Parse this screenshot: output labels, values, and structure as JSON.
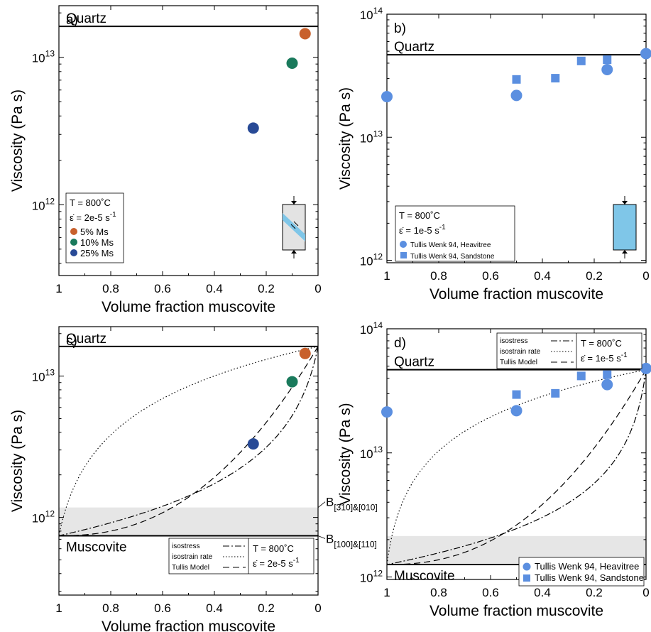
{
  "chart_data": [
    {
      "type": "scatter",
      "panel": "a)",
      "xlabel": "Volume fraction muscovite",
      "ylabel": "Viscosity (Pa s)",
      "x_reversed": true,
      "xlim": [
        1,
        0
      ],
      "ylog": true,
      "ylim_exp": [
        11.52,
        13.35
      ],
      "xticks": [
        "1",
        "0.8",
        "0.6",
        "0.4",
        "0.2",
        "0"
      ],
      "yticks": [
        {
          "base": "10",
          "exp": "12",
          "value": 12
        },
        {
          "base": "10",
          "exp": "13",
          "value": 13
        }
      ],
      "hlines": [
        {
          "label": "Quartz",
          "log_y": 13.21
        }
      ],
      "legend": {
        "conditions": [
          "T = 800˚C",
          "ε̇ = 2e-5 s"
        ],
        "condition_exp": "-1",
        "entries": [
          {
            "label": "5% Ms",
            "color": "#c8602c",
            "marker": "circle"
          },
          {
            "label": "10% Ms",
            "color": "#1a7a5c",
            "marker": "circle"
          },
          {
            "label": "25% Ms",
            "color": "#284a96",
            "marker": "circle"
          }
        ]
      },
      "points": [
        {
          "x": 0.05,
          "log_y": 13.16,
          "color": "#c8602c"
        },
        {
          "x": 0.1,
          "log_y": 12.96,
          "color": "#1a7a5c"
        },
        {
          "x": 0.25,
          "log_y": 12.52,
          "color": "#284a96"
        }
      ],
      "inset": "shear-sample"
    },
    {
      "type": "scatter",
      "panel": "b)",
      "xlabel": "Volume fraction muscovite",
      "ylabel": "Viscosity (Pa s)",
      "x_reversed": true,
      "xlim": [
        1,
        0
      ],
      "ylog": true,
      "ylim_exp": [
        11.98,
        14.0
      ],
      "xticks": [
        "1",
        "0.8",
        "0.6",
        "0.4",
        "0.2",
        "0"
      ],
      "yticks": [
        {
          "base": "10",
          "exp": "12",
          "value": 12
        },
        {
          "base": "10",
          "exp": "13",
          "value": 13
        },
        {
          "base": "10",
          "exp": "14",
          "value": 14
        }
      ],
      "hlines": [
        {
          "label": "Quartz",
          "log_y": 13.67
        }
      ],
      "legend": {
        "conditions": [
          "T = 800˚C",
          "ε̇ = 1e-5 s"
        ],
        "condition_exp": "-1",
        "entries": [
          {
            "label": "Tullis Wenk 94, Heavitree",
            "color": "#5b8fe0",
            "marker": "circle"
          },
          {
            "label": "Tullis Wenk 94, Sandstone",
            "color": "#5b8fe0",
            "marker": "square"
          }
        ]
      },
      "series": [
        {
          "name": "Tullis Wenk 94, Heavitree",
          "marker": "circle",
          "points": [
            {
              "x": 1.0,
              "log_y": 13.33
            },
            {
              "x": 0.5,
              "log_y": 13.34
            },
            {
              "x": 0.15,
              "log_y": 13.55
            },
            {
              "x": 0.0,
              "log_y": 13.68
            }
          ]
        },
        {
          "name": "Tullis Wenk 94, Sandstone",
          "marker": "square",
          "points": [
            {
              "x": 0.5,
              "log_y": 13.47
            },
            {
              "x": 0.35,
              "log_y": 13.48
            },
            {
              "x": 0.25,
              "log_y": 13.62
            },
            {
              "x": 0.15,
              "log_y": 13.63
            }
          ]
        }
      ],
      "inset": "compression-sample"
    },
    {
      "type": "line",
      "panel": "c)",
      "xlabel": "Volume fraction muscovite",
      "ylabel": "Viscosity (Pa s)",
      "x_reversed": true,
      "xlim": [
        1,
        0
      ],
      "ylog": true,
      "ylim_exp": [
        11.45,
        13.35
      ],
      "xticks": [
        "1",
        "0.8",
        "0.6",
        "0.4",
        "0.2",
        "0"
      ],
      "yticks": [
        {
          "base": "10",
          "exp": "12",
          "value": 12
        },
        {
          "base": "10",
          "exp": "13",
          "value": 13
        }
      ],
      "hlines": [
        {
          "label": "Quartz",
          "log_y": 13.21
        },
        {
          "label": "Muscovite",
          "log_y": 11.87
        }
      ],
      "band_log_y": [
        11.87,
        12.07
      ],
      "right_labels": [
        {
          "base": "B",
          "sub": "[310]&[010]",
          "log_y": 12.07
        },
        {
          "base": "B",
          "sub": "[100]&[110]",
          "log_y": 11.87
        }
      ],
      "legend": {
        "conditions": [
          "T = 800˚C",
          "ε̇ = 2e-5 s"
        ],
        "condition_exp": "-1",
        "entries": [
          {
            "label": "isostress",
            "style": "dashdot"
          },
          {
            "label": "isostrain rate",
            "style": "dotted"
          },
          {
            "label": "Tullis Model",
            "style": "dashed"
          }
        ]
      },
      "points": [
        {
          "x": 0.05,
          "log_y": 13.16,
          "color": "#c8602c"
        },
        {
          "x": 0.1,
          "log_y": 12.96,
          "color": "#1a7a5c"
        },
        {
          "x": 0.25,
          "log_y": 12.52,
          "color": "#284a96"
        }
      ],
      "curves": {
        "low_log_y": 11.87,
        "high_log_y": 13.21,
        "tullis_alpha": 2.3
      }
    },
    {
      "type": "line",
      "panel": "d)",
      "xlabel": "Volume fraction muscovite",
      "ylabel": "Viscosity (Pa s)",
      "x_reversed": true,
      "xlim": [
        1,
        0
      ],
      "ylog": true,
      "ylim_exp": [
        11.98,
        14.0
      ],
      "xticks": [
        "1",
        "0.8",
        "0.6",
        "0.4",
        "0.2",
        "0"
      ],
      "yticks": [
        {
          "base": "10",
          "exp": "12",
          "value": 12
        },
        {
          "base": "10",
          "exp": "13",
          "value": 13
        },
        {
          "base": "10",
          "exp": "14",
          "value": 14
        }
      ],
      "hlines": [
        {
          "label": "Quartz",
          "log_y": 13.67
        },
        {
          "label": "Muscovite",
          "log_y": 12.1
        }
      ],
      "band_log_y": [
        12.1,
        12.33
      ],
      "legend": {
        "conditions": [
          "T = 800˚C",
          "ε̇ = 1e-5 s"
        ],
        "condition_exp": "-1",
        "entries": [
          {
            "label": "isostress",
            "style": "dashdot"
          },
          {
            "label": "isostrain rate",
            "style": "dotted"
          },
          {
            "label": "Tullis Model",
            "style": "dashed"
          }
        ],
        "markers": [
          {
            "label": "Tullis Wenk 94, Heavitree",
            "color": "#5b8fe0",
            "marker": "circle"
          },
          {
            "label": "Tullis Wenk 94, Sandstone",
            "color": "#5b8fe0",
            "marker": "square"
          }
        ]
      },
      "series": [
        {
          "name": "Tullis Wenk 94, Heavitree",
          "marker": "circle",
          "points": [
            {
              "x": 1.0,
              "log_y": 13.33
            },
            {
              "x": 0.5,
              "log_y": 13.34
            },
            {
              "x": 0.15,
              "log_y": 13.55
            },
            {
              "x": 0.0,
              "log_y": 13.68
            }
          ]
        },
        {
          "name": "Tullis Wenk 94, Sandstone",
          "marker": "square",
          "points": [
            {
              "x": 0.5,
              "log_y": 13.47
            },
            {
              "x": 0.35,
              "log_y": 13.48
            },
            {
              "x": 0.25,
              "log_y": 13.62
            },
            {
              "x": 0.15,
              "log_y": 13.63
            }
          ]
        }
      ],
      "curves": {
        "low_log_y": 12.1,
        "high_log_y": 13.67,
        "tullis_alpha": 2.3
      }
    }
  ]
}
